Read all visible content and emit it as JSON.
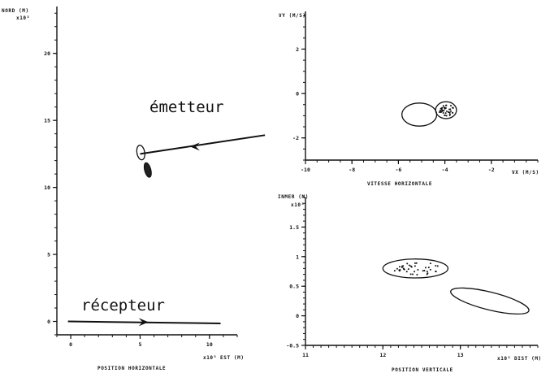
{
  "chart_data": [
    {
      "type": "line",
      "panel": "left",
      "ylabel": "NORD (M)",
      "yexp": "x10³",
      "xlabel": "POSITION HORIZONTALE",
      "xunit": "x10³ EST (M)",
      "xlim": [
        -1,
        12
      ],
      "ylim": [
        -1,
        23.5
      ],
      "xticks": [
        0,
        5,
        10
      ],
      "yticks": [
        0,
        5,
        10,
        15,
        20
      ],
      "annotations": [
        "émetteur",
        "récepteur"
      ],
      "emitter_track": [
        [
          14,
          13.9
        ],
        [
          5,
          12.5
        ]
      ],
      "emitter_arrow_at": [
        8.6,
        13.05
      ],
      "receiver_track": [
        [
          -0.2,
          0
        ],
        [
          10.8,
          -0.15
        ]
      ],
      "receiver_arrow_at": [
        5.6,
        -0.05
      ],
      "ellipses": [
        {
          "cx": 5.05,
          "cy": 12.6,
          "rx": 0.28,
          "ry": 0.55,
          "rot": -10
        },
        {
          "cx": 5.55,
          "cy": 11.3,
          "rx": 0.22,
          "ry": 0.55,
          "rot": -15,
          "filled": true
        }
      ]
    },
    {
      "type": "scatter",
      "panel": "top-right",
      "ylabel": "VY (M/S)",
      "xlabel": "VITESSE HORIZONTALE",
      "xunit": "VX (M/S)",
      "xlim": [
        -10,
        0
      ],
      "ylim": [
        -3,
        3.7
      ],
      "xticks": [
        -10,
        -8,
        -6,
        -4,
        -2
      ],
      "yticks": [
        -2,
        0,
        2
      ],
      "ellipses": [
        {
          "cx": -5.1,
          "cy": -0.95,
          "rx": 0.75,
          "ry": 0.52,
          "rot": 0
        },
        {
          "cx": -3.95,
          "cy": -0.75,
          "rx": 0.45,
          "ry": 0.38,
          "rot": 0,
          "dots": true
        }
      ]
    },
    {
      "type": "scatter",
      "panel": "bottom-right",
      "ylabel": "INMER (M)",
      "yexp": "x10³",
      "xlabel": "POSITION VERTICALE",
      "xunit": "x10³ DIST (M)",
      "xlim": [
        11,
        14
      ],
      "ylim": [
        -0.5,
        2
      ],
      "xticks": [
        11,
        12,
        13
      ],
      "yticks": [
        -0.5,
        0.0,
        0.5,
        1.0,
        1.5
      ],
      "ellipses": [
        {
          "cx": 12.42,
          "cy": 0.8,
          "rx": 0.42,
          "ry": 0.16,
          "rot": 0,
          "dots": true
        },
        {
          "cx": 13.38,
          "cy": 0.25,
          "rx": 0.52,
          "ry": 0.15,
          "rot": 14
        }
      ]
    }
  ],
  "text": {
    "left_ylabel": "NORD (M)",
    "left_yexp": "x10³",
    "left_xlabel": "POSITION HORIZONTALE",
    "left_xunit": "x10³ EST (M)",
    "emetteur": "émetteur",
    "recepteur": "récepteur",
    "tr_ylabel": "VY (M/S)",
    "tr_xlabel": "VITESSE HORIZONTALE",
    "tr_xunit": "VX (M/S)",
    "br_ylabel": "INMER (M)",
    "br_yexp": "x10³",
    "br_xlabel": "POSITION VERTICALE",
    "br_xunit": "x10³ DIST (M)"
  }
}
